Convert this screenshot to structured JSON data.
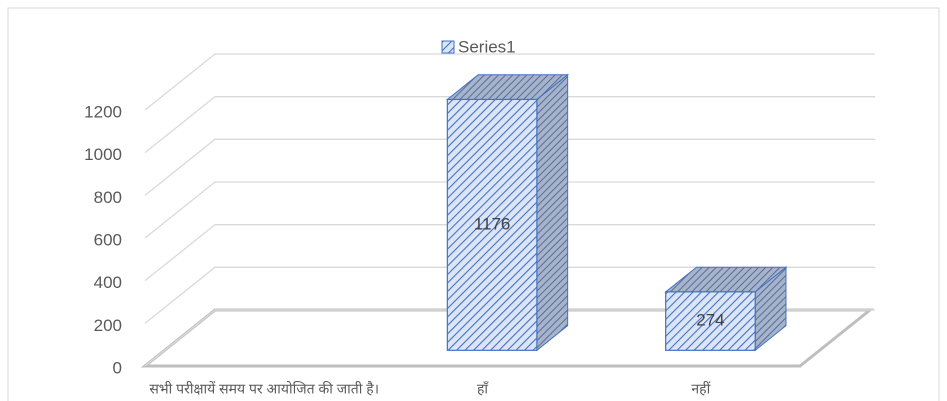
{
  "chart_data": {
    "type": "bar3d",
    "categories": [
      "सभी परीक्षायें समय पर आयोजित की जाती है।",
      "हाँ",
      "नहीं"
    ],
    "series": [
      {
        "name": "Series1",
        "color": "#4472c4",
        "values": [
          null,
          1176,
          274
        ]
      }
    ],
    "ylim": [
      0,
      1200
    ],
    "yticks": [
      0,
      200,
      400,
      600,
      800,
      1000,
      1200
    ],
    "grid": true,
    "legend": "top"
  }
}
